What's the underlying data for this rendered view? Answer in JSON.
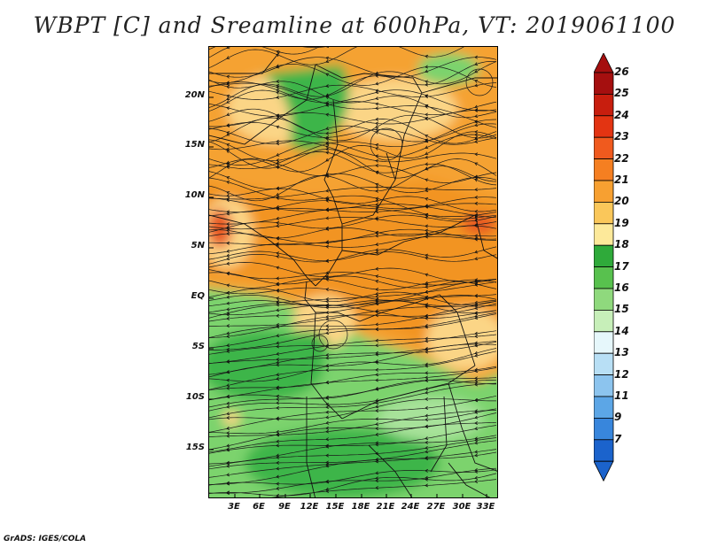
{
  "title": "WBPT [C] and Sreamline at 600hPa, VT: 2019061100",
  "credit": "GrADS: IGES/COLA",
  "lat_labels": [
    "20N",
    "15N",
    "10N",
    "5N",
    "EQ",
    "5S",
    "10S",
    "15S"
  ],
  "lon_labels": [
    "3E",
    "6E",
    "9E",
    "12E",
    "15E",
    "18E",
    "21E",
    "24E",
    "27E",
    "30E",
    "33E"
  ],
  "colorbar": {
    "labels": [
      "26",
      "25",
      "24",
      "23",
      "22",
      "21",
      "20",
      "19",
      "18",
      "17",
      "16",
      "15",
      "14",
      "13",
      "12",
      "11",
      "9",
      "7"
    ],
    "colors": [
      "#a50f0f",
      "#c81e0e",
      "#e33412",
      "#f05a1e",
      "#f57f21",
      "#f7a031",
      "#fac75a",
      "#fde99a",
      "#2faa3a",
      "#58c14e",
      "#8fd97d",
      "#c7efb9",
      "#e6f7fb",
      "#b8dff5",
      "#8cc4ee",
      "#5ca6e6",
      "#3886dc",
      "#1b63cc"
    ],
    "top_arrow_color": "#a50f0f",
    "bottom_arrow_color": "#1b63cc"
  },
  "fields": {
    "north_orange_color": "#f5a232",
    "mid_orange_color": "#f29424",
    "light_yellow_color": "#fbd586",
    "green_color": "#7bd36d",
    "dark_green_color": "#3db54a",
    "red_spot_color": "#e85a20"
  }
}
